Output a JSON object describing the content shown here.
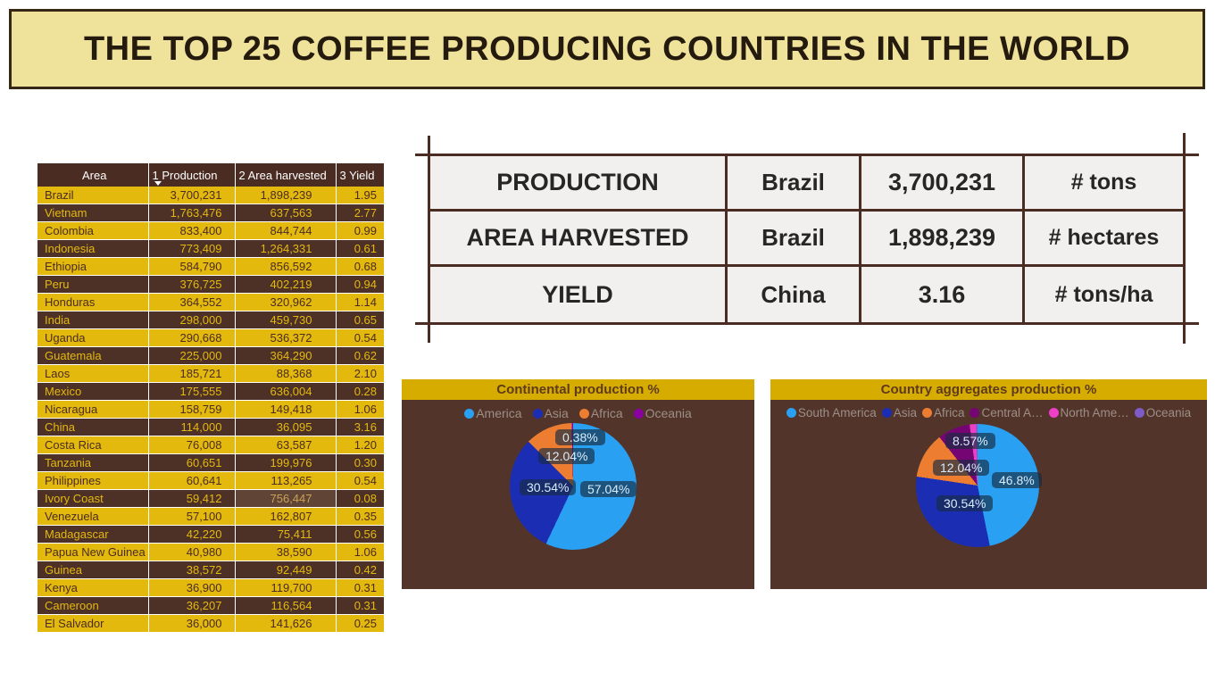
{
  "banner": {
    "title": "THE TOP 25 COFFEE PRODUCING COUNTRIES IN THE WORLD"
  },
  "table": {
    "columns": [
      "Area",
      "1 Production",
      "2 Area harvested",
      "3 Yield"
    ],
    "sorted_by": "1 Production",
    "sort_direction": "descending",
    "rows": [
      [
        "Brazil",
        "3,700,231",
        "1,898,239",
        "1.95"
      ],
      [
        "Vietnam",
        "1,763,476",
        "637,563",
        "2.77"
      ],
      [
        "Colombia",
        "833,400",
        "844,744",
        "0.99"
      ],
      [
        "Indonesia",
        "773,409",
        "1,264,331",
        "0.61"
      ],
      [
        "Ethiopia",
        "584,790",
        "856,592",
        "0.68"
      ],
      [
        "Peru",
        "376,725",
        "402,219",
        "0.94"
      ],
      [
        "Honduras",
        "364,552",
        "320,962",
        "1.14"
      ],
      [
        "India",
        "298,000",
        "459,730",
        "0.65"
      ],
      [
        "Uganda",
        "290,668",
        "536,372",
        "0.54"
      ],
      [
        "Guatemala",
        "225,000",
        "364,290",
        "0.62"
      ],
      [
        "Laos",
        "185,721",
        "88,368",
        "2.10"
      ],
      [
        "Mexico",
        "175,555",
        "636,004",
        "0.28"
      ],
      [
        "Nicaragua",
        "158,759",
        "149,418",
        "1.06"
      ],
      [
        "China",
        "114,000",
        "36,095",
        "3.16"
      ],
      [
        "Costa Rica",
        "76,008",
        "63,587",
        "1.20"
      ],
      [
        "Tanzania",
        "60,651",
        "199,976",
        "0.30"
      ],
      [
        "Philippines",
        "60,641",
        "113,265",
        "0.54"
      ],
      [
        "Ivory Coast",
        "59,412",
        "756,447",
        "0.08"
      ],
      [
        "Venezuela",
        "57,100",
        "162,807",
        "0.35"
      ],
      [
        "Madagascar",
        "42,220",
        "75,411",
        "0.56"
      ],
      [
        "Papua New Guinea",
        "40,980",
        "38,590",
        "1.06"
      ],
      [
        "Guinea",
        "38,572",
        "92,449",
        "0.42"
      ],
      [
        "Kenya",
        "36,900",
        "119,700",
        "0.31"
      ],
      [
        "Cameroon",
        "36,207",
        "116,564",
        "0.31"
      ],
      [
        "El Salvador",
        "36,000",
        "141,626",
        "0.25"
      ]
    ],
    "highlight": {
      "row_index": 17,
      "col_index": 2
    }
  },
  "summary": {
    "rows": [
      {
        "metric": "PRODUCTION",
        "country": "Brazil",
        "value": "3,700,231",
        "unit": "# tons"
      },
      {
        "metric": "AREA HARVESTED",
        "country": "Brazil",
        "value": "1,898,239",
        "unit": "# hectares"
      },
      {
        "metric": "YIELD",
        "country": "China",
        "value": "3.16",
        "unit": "# tons/ha"
      }
    ]
  },
  "chart_data": [
    {
      "type": "pie",
      "title": "Continental production %",
      "legend_position": "top",
      "legend": [
        {
          "label": "America",
          "color": "#29a0f2"
        },
        {
          "label": "Asia",
          "color": "#1b2db2"
        },
        {
          "label": "Africa",
          "color": "#ed7d31"
        },
        {
          "label": "Oceania",
          "color": "#8b00a0"
        }
      ],
      "slices": [
        {
          "name": "America",
          "pct": 57.04,
          "color": "#29a0f2",
          "label": "57.04%"
        },
        {
          "name": "Asia",
          "pct": 30.54,
          "color": "#1b2db2",
          "label": "30.54%"
        },
        {
          "name": "Africa",
          "pct": 12.04,
          "color": "#ed7d31",
          "label": "12.04%"
        },
        {
          "name": "Oceania",
          "pct": 0.38,
          "color": "#8b00a0",
          "label": "0.38%"
        }
      ]
    },
    {
      "type": "pie",
      "title": "Country aggregates production %",
      "legend_position": "top",
      "legend": [
        {
          "label": "South America",
          "color": "#29a0f2"
        },
        {
          "label": "Asia",
          "color": "#1b2db2"
        },
        {
          "label": "Africa",
          "color": "#ed7d31"
        },
        {
          "label": "Central A…",
          "color": "#750572"
        },
        {
          "label": "North Ame…",
          "color": "#ee3fc8"
        },
        {
          "label": "Oceania",
          "color": "#7e5cc8"
        }
      ],
      "slices": [
        {
          "name": "South America",
          "pct": 46.8,
          "color": "#29a0f2",
          "label": "46.8%"
        },
        {
          "name": "Asia",
          "pct": 30.54,
          "color": "#1b2db2",
          "label": "30.54%"
        },
        {
          "name": "Africa",
          "pct": 12.04,
          "color": "#ed7d31",
          "label": "12.04%"
        },
        {
          "name": "Central America",
          "pct": 8.57,
          "color": "#750572",
          "label": "8.57%"
        },
        {
          "name": "North America",
          "pct": 1.67,
          "color": "#ee3fc8",
          "label": ""
        },
        {
          "name": "Oceania",
          "pct": 0.38,
          "color": "#7e5cc8",
          "label": ""
        }
      ]
    }
  ],
  "colors": {
    "banner_bg": "#efe29b",
    "banner_border": "#362716",
    "banner_text": "#241a0e",
    "brown_header": "#4a2c22",
    "row_yellow": "#e4b90e",
    "row_brown": "#4d3026",
    "card_bg": "#f2f0ee",
    "gold": "#d7ac00",
    "chart_bg": "#53342a"
  }
}
